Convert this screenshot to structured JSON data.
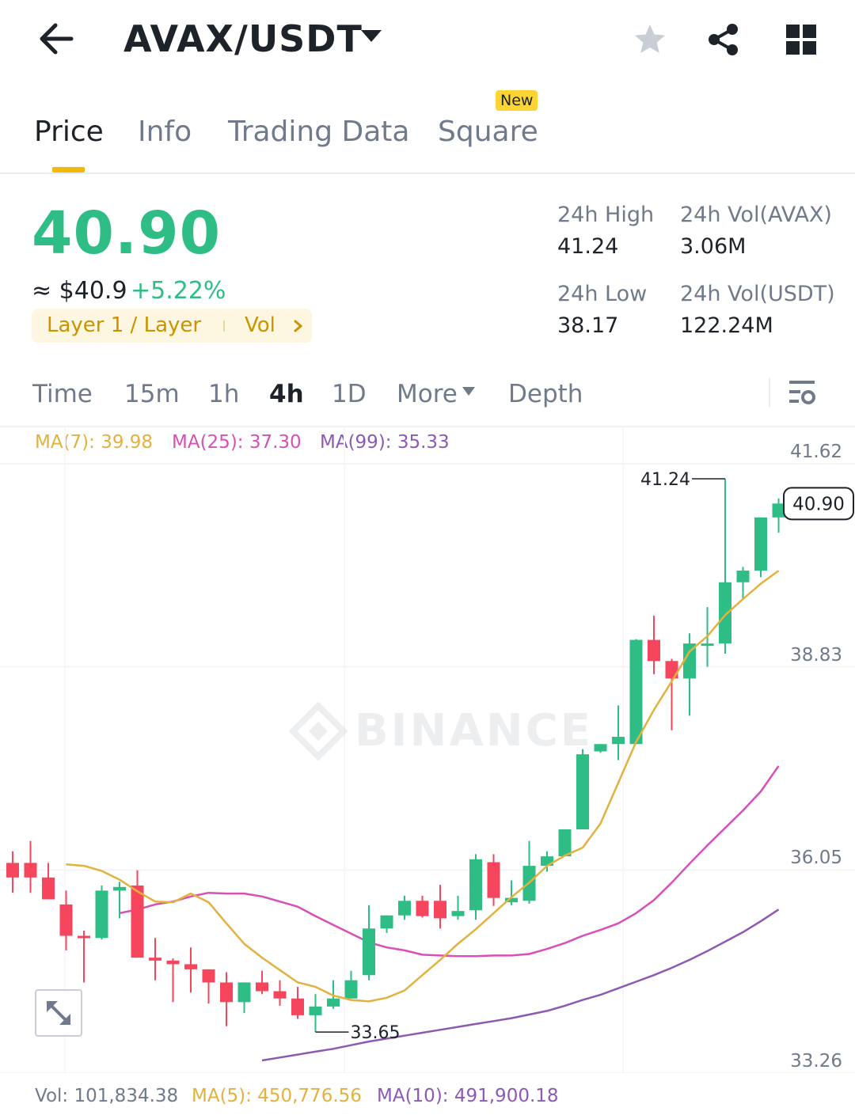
{
  "header": {
    "pair": "AVAX/USDT",
    "icons": [
      "back-arrow-icon",
      "caret-down-icon",
      "star-icon",
      "share-icon",
      "grid-icon"
    ]
  },
  "tabs": [
    {
      "label": "Price",
      "active": true
    },
    {
      "label": "Info",
      "active": false
    },
    {
      "label": "Trading Data",
      "active": false
    },
    {
      "label": "Square",
      "active": false
    }
  ],
  "new_badge": "New",
  "ticker": {
    "last_price": "40.90",
    "fiat_price": "≈ $40.9",
    "change": "+5.22%",
    "tag": "Layer 1 / Layer",
    "vol_link": "Vol",
    "stats": {
      "high_label": "24h High",
      "high_value": "41.24",
      "low_label": "24h Low",
      "low_value": "38.17",
      "vol_base_label": "24h Vol(AVAX)",
      "vol_base_value": "3.06M",
      "vol_quote_label": "24h Vol(USDT)",
      "vol_quote_value": "122.24M"
    }
  },
  "intervals": [
    {
      "label": "Time"
    },
    {
      "label": "15m"
    },
    {
      "label": "1h"
    },
    {
      "label": "4h",
      "active": true
    },
    {
      "label": "1D"
    },
    {
      "label": "More"
    },
    {
      "label": "Depth"
    }
  ],
  "ma_legend": {
    "ma7": "MA(7): 39.98",
    "ma25": "MA(25): 37.30",
    "ma99": "MA(99): 35.33"
  },
  "colors": {
    "up": "#2ebd85",
    "down": "#f6465d",
    "ma7": "#e2b23f",
    "ma25": "#d84fb7",
    "ma99": "#8d5ab3",
    "accent": "#f0b90b"
  },
  "watermark": "BINANCE",
  "vol_legend": {
    "vol": "Vol: 101,834.38",
    "ma5": "MA(5): 450,776.56",
    "ma10": "MA(10): 491,900.18"
  },
  "chart_data": {
    "type": "candlestick",
    "y_axis_labels": [
      "41.62",
      "38.83",
      "36.05",
      "33.26"
    ],
    "ylim": [
      33.26,
      41.62
    ],
    "high_marker": "41.24",
    "low_marker": "33.65",
    "current_price_label": "40.90",
    "current_price": 40.9,
    "candles": [
      {
        "o": 35.97,
        "h": 36.13,
        "l": 35.56,
        "c": 35.77
      },
      {
        "o": 35.97,
        "h": 36.27,
        "l": 35.56,
        "c": 35.77
      },
      {
        "o": 35.77,
        "h": 35.97,
        "l": 35.47,
        "c": 35.47
      },
      {
        "o": 35.4,
        "h": 35.59,
        "l": 34.77,
        "c": 34.97
      },
      {
        "o": 34.97,
        "h": 35.04,
        "l": 34.33,
        "c": 34.94
      },
      {
        "o": 34.94,
        "h": 35.66,
        "l": 34.92,
        "c": 35.59
      },
      {
        "o": 35.59,
        "h": 35.71,
        "l": 35.21,
        "c": 35.64
      },
      {
        "o": 35.66,
        "h": 35.87,
        "l": 34.67,
        "c": 34.67
      },
      {
        "o": 34.67,
        "h": 34.94,
        "l": 34.36,
        "c": 34.63
      },
      {
        "o": 34.63,
        "h": 34.66,
        "l": 34.06,
        "c": 34.58
      },
      {
        "o": 34.58,
        "h": 34.81,
        "l": 34.19,
        "c": 34.51
      },
      {
        "o": 34.51,
        "h": 34.51,
        "l": 34.04,
        "c": 34.33
      },
      {
        "o": 34.33,
        "h": 34.47,
        "l": 33.73,
        "c": 34.06
      },
      {
        "o": 34.06,
        "h": 34.33,
        "l": 33.91,
        "c": 34.33
      },
      {
        "o": 34.33,
        "h": 34.49,
        "l": 34.17,
        "c": 34.21
      },
      {
        "o": 34.21,
        "h": 34.36,
        "l": 34.01,
        "c": 34.11
      },
      {
        "o": 34.11,
        "h": 34.27,
        "l": 33.83,
        "c": 33.88
      },
      {
        "o": 33.88,
        "h": 34.17,
        "l": 33.65,
        "c": 34.0
      },
      {
        "o": 34.0,
        "h": 34.36,
        "l": 33.97,
        "c": 34.11
      },
      {
        "o": 34.11,
        "h": 34.49,
        "l": 34.11,
        "c": 34.36
      },
      {
        "o": 34.43,
        "h": 35.39,
        "l": 34.36,
        "c": 35.07
      },
      {
        "o": 35.07,
        "h": 35.25,
        "l": 35.01,
        "c": 35.25
      },
      {
        "o": 35.25,
        "h": 35.52,
        "l": 35.19,
        "c": 35.45
      },
      {
        "o": 35.45,
        "h": 35.52,
        "l": 35.22,
        "c": 35.24
      },
      {
        "o": 35.45,
        "h": 35.67,
        "l": 35.07,
        "c": 35.21
      },
      {
        "o": 35.24,
        "h": 35.52,
        "l": 35.19,
        "c": 35.31
      },
      {
        "o": 35.32,
        "h": 36.09,
        "l": 35.19,
        "c": 36.02
      },
      {
        "o": 35.98,
        "h": 36.09,
        "l": 35.38,
        "c": 35.49
      },
      {
        "o": 35.43,
        "h": 35.73,
        "l": 35.39,
        "c": 35.49
      },
      {
        "o": 35.45,
        "h": 36.27,
        "l": 35.41,
        "c": 35.93
      },
      {
        "o": 35.93,
        "h": 36.13,
        "l": 35.85,
        "c": 36.06
      },
      {
        "o": 36.06,
        "h": 36.43,
        "l": 36.06,
        "c": 36.43
      },
      {
        "o": 36.43,
        "h": 37.53,
        "l": 36.43,
        "c": 37.46
      },
      {
        "o": 37.5,
        "h": 37.6,
        "l": 37.48,
        "c": 37.6
      },
      {
        "o": 37.6,
        "h": 38.13,
        "l": 37.38,
        "c": 37.7
      },
      {
        "o": 37.6,
        "h": 39.04,
        "l": 37.6,
        "c": 39.03
      },
      {
        "o": 39.03,
        "h": 39.36,
        "l": 38.56,
        "c": 38.74
      },
      {
        "o": 38.74,
        "h": 38.77,
        "l": 37.79,
        "c": 38.5
      },
      {
        "o": 38.5,
        "h": 39.12,
        "l": 37.99,
        "c": 38.98
      },
      {
        "o": 38.98,
        "h": 39.48,
        "l": 38.66,
        "c": 38.98
      },
      {
        "o": 38.98,
        "h": 41.24,
        "l": 38.84,
        "c": 39.82
      },
      {
        "o": 39.82,
        "h": 40.03,
        "l": 39.59,
        "c": 39.98
      },
      {
        "o": 39.98,
        "h": 40.71,
        "l": 39.89,
        "c": 40.71
      },
      {
        "o": 40.71,
        "h": 40.97,
        "l": 40.5,
        "c": 40.9
      }
    ],
    "ma7": [
      35.95,
      35.93,
      35.86,
      35.74,
      35.58,
      35.44,
      35.43,
      35.55,
      35.43,
      35.14,
      34.86,
      34.67,
      34.5,
      34.33,
      34.27,
      34.15,
      34.09,
      34.07,
      34.12,
      34.22,
      34.43,
      34.64,
      34.86,
      35.06,
      35.28,
      35.5,
      35.7,
      35.93,
      36.07,
      36.18,
      36.51,
      37.07,
      37.63,
      38.07,
      38.46,
      38.87,
      39.08,
      39.37,
      39.59,
      39.8,
      39.98
    ],
    "ma25": [
      35.28,
      35.33,
      35.4,
      35.44,
      35.51,
      35.56,
      35.55,
      35.55,
      35.51,
      35.44,
      35.37,
      35.24,
      35.12,
      35.0,
      34.88,
      34.81,
      34.77,
      34.71,
      34.7,
      34.69,
      34.69,
      34.7,
      34.7,
      34.72,
      34.79,
      34.87,
      34.97,
      35.05,
      35.14,
      35.28,
      35.46,
      35.7,
      35.96,
      36.21,
      36.45,
      36.69,
      36.95,
      37.3
    ],
    "ma99": [
      33.26,
      33.3,
      33.34,
      33.38,
      33.42,
      33.47,
      33.52,
      33.56,
      33.6,
      33.64,
      33.68,
      33.72,
      33.76,
      33.8,
      33.84,
      33.89,
      33.94,
      34.01,
      34.09,
      34.16,
      34.25,
      34.34,
      34.43,
      34.53,
      34.64,
      34.76,
      34.89,
      35.02,
      35.17,
      35.33
    ]
  }
}
